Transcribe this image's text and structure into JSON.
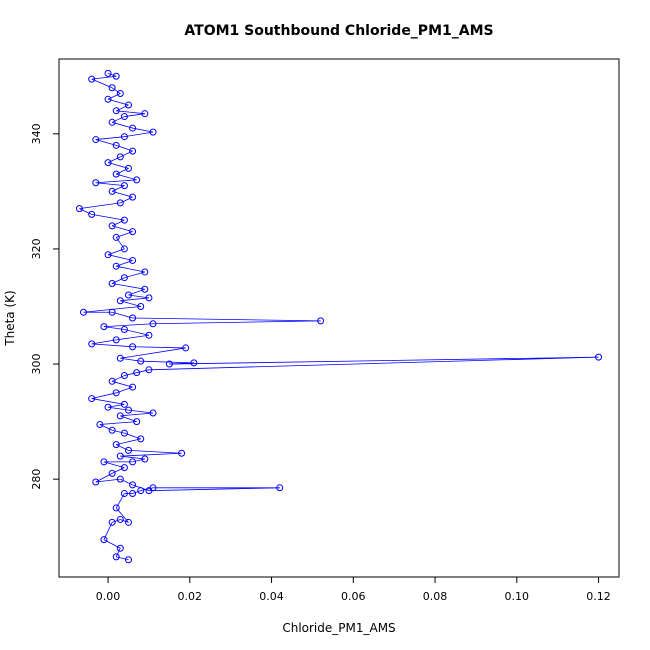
{
  "chart_data": {
    "type": "line",
    "title": "ATOM1 Southbound Chloride_PM1_AMS",
    "xlabel": "Chloride_PM1_AMS",
    "ylabel": "Theta (K)",
    "xlim": [
      -0.012,
      0.125
    ],
    "ylim": [
      263,
      353
    ],
    "xticks": [
      0.0,
      0.02,
      0.04,
      0.06,
      0.08,
      0.1,
      0.12
    ],
    "xtick_labels": [
      "0.00",
      "0.02",
      "0.04",
      "0.06",
      "0.08",
      "0.10",
      "0.12"
    ],
    "yticks": [
      280,
      300,
      320,
      340
    ],
    "ytick_labels": [
      "280",
      "300",
      "320",
      "340"
    ],
    "grid": false,
    "legend": "none",
    "series": [
      {
        "color": "#0000ff",
        "marker": "open-circle",
        "points": [
          [
            0.005,
            266
          ],
          [
            0.002,
            266.5
          ],
          [
            0.003,
            268
          ],
          [
            -0.001,
            269.5
          ],
          [
            0.001,
            272.5
          ],
          [
            0.003,
            273
          ],
          [
            0.005,
            272.5
          ],
          [
            0.002,
            275
          ],
          [
            0.004,
            277.5
          ],
          [
            0.006,
            277.5
          ],
          [
            0.008,
            278
          ],
          [
            0.011,
            278.5
          ],
          [
            0.042,
            278.5
          ],
          [
            0.01,
            278
          ],
          [
            0.006,
            279
          ],
          [
            0.003,
            280
          ],
          [
            -0.003,
            279.5
          ],
          [
            0.001,
            281
          ],
          [
            0.004,
            282
          ],
          [
            -0.001,
            283
          ],
          [
            0.006,
            283
          ],
          [
            0.009,
            283.5
          ],
          [
            0.003,
            284
          ],
          [
            0.018,
            284.5
          ],
          [
            0.005,
            285
          ],
          [
            0.002,
            286
          ],
          [
            0.008,
            287
          ],
          [
            0.004,
            288
          ],
          [
            0.001,
            288.5
          ],
          [
            -0.002,
            289.5
          ],
          [
            0.007,
            290
          ],
          [
            0.003,
            291
          ],
          [
            0.011,
            291.5
          ],
          [
            0.005,
            292
          ],
          [
            0.0,
            292.5
          ],
          [
            0.004,
            293
          ],
          [
            -0.004,
            294
          ],
          [
            0.002,
            295
          ],
          [
            0.006,
            296
          ],
          [
            0.001,
            297
          ],
          [
            0.004,
            298
          ],
          [
            0.007,
            298.5
          ],
          [
            0.01,
            299
          ],
          [
            0.12,
            301.2
          ],
          [
            0.015,
            300
          ],
          [
            0.021,
            300.2
          ],
          [
            0.008,
            300.5
          ],
          [
            0.003,
            301
          ],
          [
            0.019,
            302.8
          ],
          [
            0.006,
            303
          ],
          [
            -0.004,
            303.5
          ],
          [
            0.002,
            304.2
          ],
          [
            0.01,
            305
          ],
          [
            0.004,
            306
          ],
          [
            -0.001,
            306.5
          ],
          [
            0.011,
            307
          ],
          [
            0.052,
            307.5
          ],
          [
            0.006,
            308
          ],
          [
            0.001,
            309
          ],
          [
            -0.006,
            309
          ],
          [
            0.008,
            310
          ],
          [
            0.003,
            311
          ],
          [
            0.01,
            311.5
          ],
          [
            0.005,
            312
          ],
          [
            0.009,
            313
          ],
          [
            0.001,
            314
          ],
          [
            0.004,
            315
          ],
          [
            0.009,
            316
          ],
          [
            0.002,
            317
          ],
          [
            0.006,
            318
          ],
          [
            0.0,
            319
          ],
          [
            0.004,
            320
          ],
          [
            0.002,
            322
          ],
          [
            0.006,
            323
          ],
          [
            0.001,
            324
          ],
          [
            0.004,
            325
          ],
          [
            -0.004,
            326
          ],
          [
            -0.007,
            327
          ],
          [
            0.003,
            328
          ],
          [
            0.006,
            329
          ],
          [
            0.001,
            330
          ],
          [
            0.004,
            331
          ],
          [
            -0.003,
            331.5
          ],
          [
            0.007,
            332
          ],
          [
            0.002,
            333
          ],
          [
            0.005,
            334
          ],
          [
            0.0,
            335
          ],
          [
            0.003,
            336
          ],
          [
            0.006,
            337
          ],
          [
            0.002,
            338
          ],
          [
            -0.003,
            339
          ],
          [
            0.004,
            339.5
          ],
          [
            0.011,
            340.3
          ],
          [
            0.006,
            341
          ],
          [
            0.001,
            342
          ],
          [
            0.004,
            343
          ],
          [
            0.009,
            343.5
          ],
          [
            0.002,
            344
          ],
          [
            0.005,
            345
          ],
          [
            0.0,
            346
          ],
          [
            0.003,
            347
          ],
          [
            0.001,
            348
          ],
          [
            -0.004,
            349.5
          ],
          [
            0.002,
            350
          ],
          [
            0.0,
            350.5
          ]
        ]
      }
    ]
  }
}
